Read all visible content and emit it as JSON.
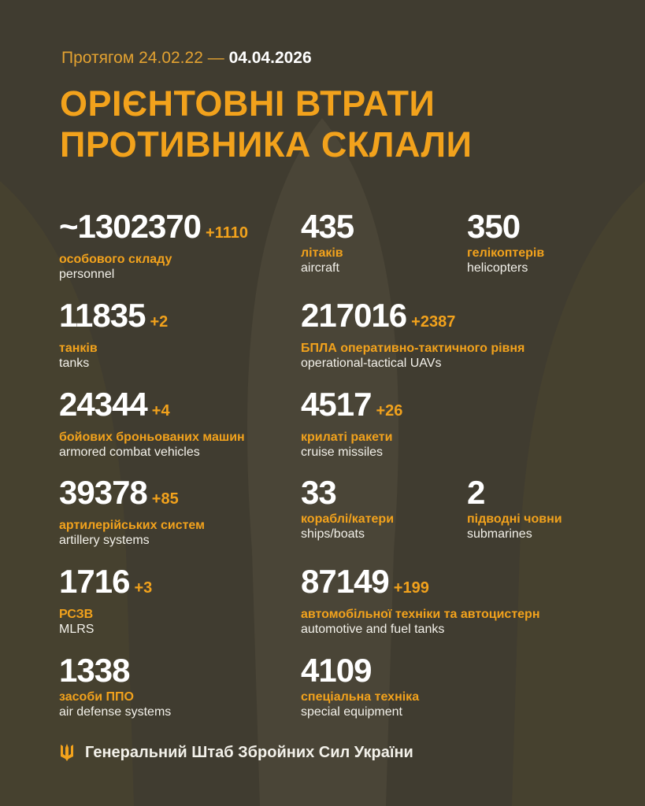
{
  "header": {
    "period_prefix": "Протягом 24.02.22 —",
    "period_end": "04.04.2026",
    "title_line1": "ОРІЄНТОВНІ ВТРАТИ",
    "title_line2": "ПРОТИВНИКА СКЛАЛИ"
  },
  "stats": [
    {
      "value": "~1302370",
      "delta": "+1110",
      "ua": "особового складу",
      "en": "personnel"
    },
    {
      "value": "435",
      "delta": "",
      "ua": "літаків",
      "en": "aircraft"
    },
    {
      "value": "350",
      "delta": "",
      "ua": "гелікоптерів",
      "en": "helicopters"
    },
    {
      "value": "11835",
      "delta": "+2",
      "ua": "танків",
      "en": "tanks"
    },
    {
      "value": "217016",
      "delta": "+2387",
      "ua": "БПЛА оперативно-тактичного рівня",
      "en": "operational-tactical UAVs"
    },
    {
      "value": "24344",
      "delta": "+4",
      "ua": "бойових броньованих машин",
      "en": "armored combat vehicles"
    },
    {
      "value": "4517",
      "delta": "+26",
      "ua": "крилаті ракети",
      "en": "cruise missiles"
    },
    {
      "value": "39378",
      "delta": "+85",
      "ua": "артилерійських систем",
      "en": "artillery systems"
    },
    {
      "value": "33",
      "delta": "",
      "ua": "кораблі/катери",
      "en": "ships/boats"
    },
    {
      "value": "2",
      "delta": "",
      "ua": "підводні човни",
      "en": "submarines"
    },
    {
      "value": "1716",
      "delta": "+3",
      "ua": "РСЗВ",
      "en": "MLRS"
    },
    {
      "value": "87149",
      "delta": "+199",
      "ua": "автомобільної техніки та автоцистерн",
      "en": "automotive and fuel tanks"
    },
    {
      "value": "1338",
      "delta": "",
      "ua": "засоби ППО",
      "en": "air defense systems"
    },
    {
      "value": "4109",
      "delta": "",
      "ua": "спеціальна техніка",
      "en": "special equipment"
    }
  ],
  "footer": {
    "org": "Генеральний Штаб Збройних Сил України",
    "icon": "trident-icon"
  },
  "colors": {
    "background": "#403c30",
    "accent": "#f2a21c",
    "text": "#ffffff"
  }
}
